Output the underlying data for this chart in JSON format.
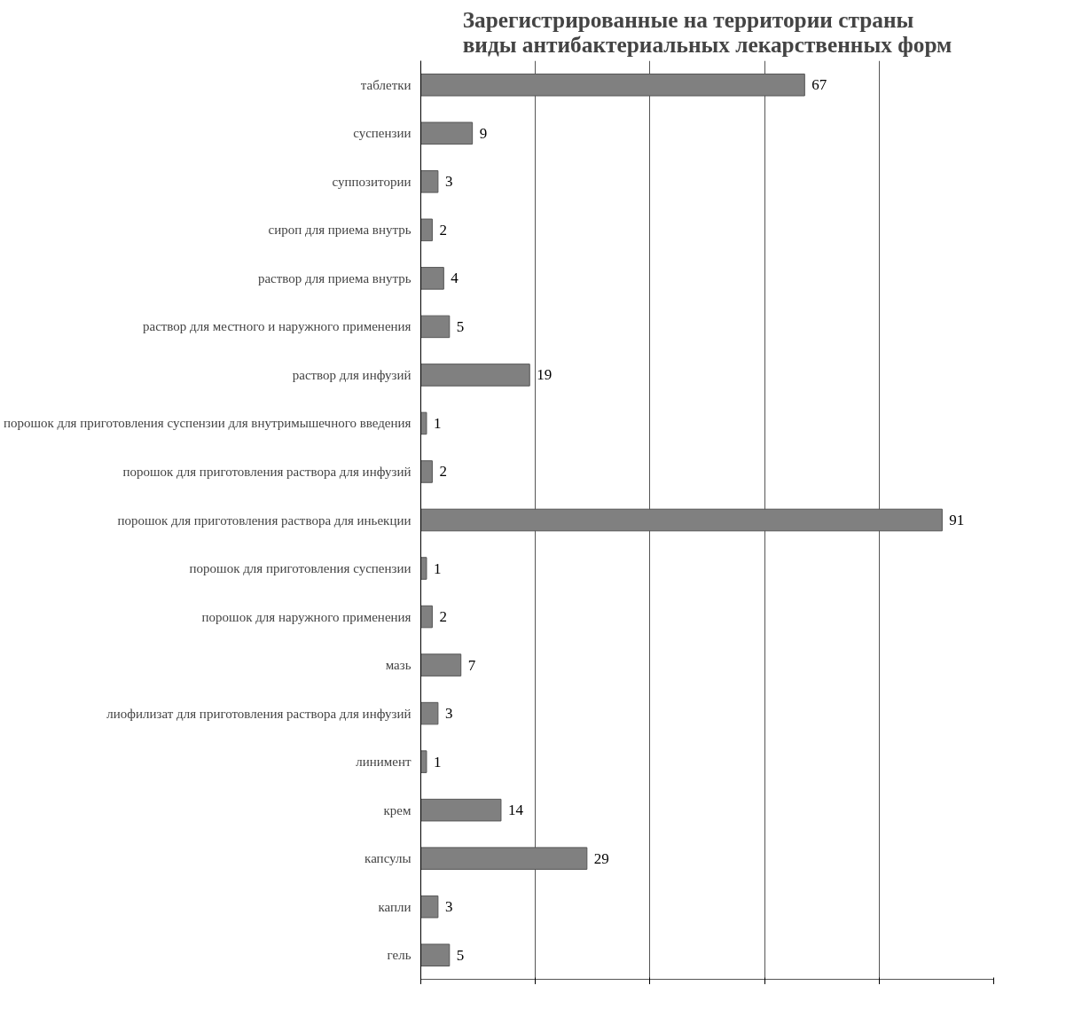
{
  "chart_data": {
    "type": "bar",
    "orientation": "horizontal",
    "title": "Зарегистрированные на территории страны виды антибактериальных лекарственных форм",
    "categories": [
      "таблетки",
      "суспензии",
      "суппозитории",
      "сироп для приема внутрь",
      "раствор для приема внутрь",
      "раствор для местного и наружного применения",
      "раствор для инфузий",
      "порошок для приготовления суспензии для внутримышечного введения",
      "порошок для приготовления раствора для инфузий",
      "порошок для приготовления раствора для иньекции",
      "порошок для приготовления суспензии",
      "порошок для наружного применения",
      "мазь",
      "лиофилизат для приготовления раствора для инфузий",
      "линимент",
      "крем",
      "капсулы",
      "капли",
      "гель"
    ],
    "values": [
      67,
      9,
      3,
      2,
      4,
      5,
      19,
      1,
      2,
      91,
      1,
      2,
      7,
      3,
      1,
      14,
      29,
      3,
      5
    ],
    "color": "#808080",
    "data_labels": true,
    "xlim": [
      0,
      100
    ],
    "xticks": [
      {
        "value": 0,
        "label": null
      },
      {
        "value": 20,
        "label": null
      },
      {
        "value": 40,
        "label": null
      },
      {
        "value": 60,
        "label": null
      },
      {
        "value": 80,
        "label": null
      },
      {
        "value": 100,
        "label": null
      }
    ],
    "grid": "x",
    "tick_labels": "y"
  }
}
